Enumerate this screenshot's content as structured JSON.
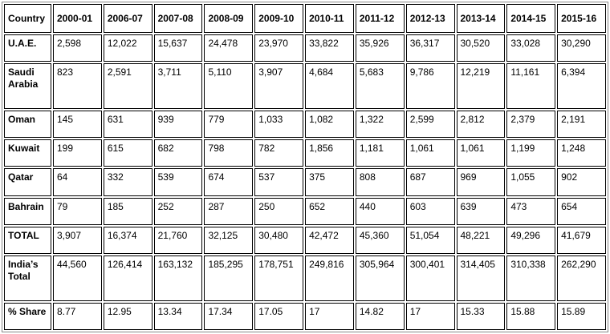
{
  "table": {
    "header": [
      "Country",
      "2000-01",
      "2006-07",
      "2007-08",
      "2008-09",
      "2009-10",
      "2010-11",
      "2011-12",
      "2012-13",
      "2013-14",
      "2014-15",
      "2015-16"
    ],
    "rows": [
      [
        "U.A.E.",
        "2,598",
        "12,022",
        "15,637",
        "24,478",
        "23,970",
        "33,822",
        "35,926",
        "36,317",
        "30,520",
        "33,028",
        "30,290"
      ],
      [
        "Saudi Arabia",
        "823",
        "2,591",
        "3,711",
        "5,110",
        "3,907",
        "4,684",
        "5,683",
        "9,786",
        "12,219",
        "11,161",
        "6,394"
      ],
      [
        "Oman",
        "145",
        "631",
        "939",
        "779",
        "1,033",
        "1,082",
        "1,322",
        "2,599",
        "2,812",
        "2,379",
        "2,191"
      ],
      [
        "Kuwait",
        "199",
        "615",
        "682",
        "798",
        "782",
        "1,856",
        "1,181",
        "1,061",
        "1,061",
        "1,199",
        "1,248"
      ],
      [
        "Qatar",
        "64",
        "332",
        "539",
        "674",
        "537",
        "375",
        "808",
        "687",
        "969",
        "1,055",
        "902"
      ],
      [
        "Bahrain",
        "79",
        "185",
        "252",
        "287",
        "250",
        "652",
        "440",
        "603",
        "639",
        "473",
        "654"
      ],
      [
        "TOTAL",
        "3,907",
        "16,374",
        "21,760",
        "32,125",
        "30,480",
        "42,472",
        "45,360",
        "51,054",
        "48,221",
        "49,296",
        "41,679"
      ],
      [
        "India’s Total",
        "44,560",
        "126,414",
        "163,132",
        "185,295",
        "178,751",
        "249,816",
        "305,964",
        "300,401",
        "314,405",
        "310,338",
        "262,290"
      ],
      [
        "% Share",
        "8.77",
        "12.95",
        "13.34",
        "17.34",
        "17.05",
        "17",
        "14.82",
        "17",
        "15.33",
        "15.88",
        "15.89"
      ]
    ]
  }
}
